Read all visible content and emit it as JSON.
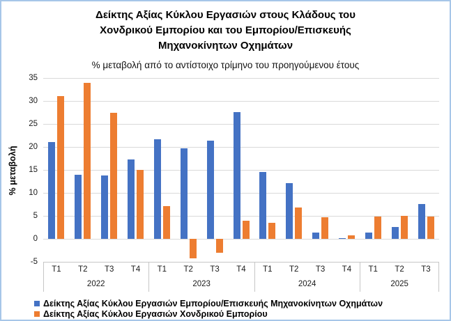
{
  "chart_data": {
    "type": "bar",
    "title": "Δείκτης Αξίας  Κύκλου Εργασιών στους Κλάδους του\nΧονδρικού Εμπορίου και του Εμπορίου/Επισκευής\nΜηχανοκίνητων Οχημάτων",
    "subtitle": "% μεταβολή από το αντίστοιχο τρίμηνο του προηγούμενου έτους",
    "ylabel": "% μεταβολή",
    "xlabel": "",
    "ylim": [
      -5,
      35
    ],
    "ytick_step": 5,
    "grid": true,
    "legend_position": "bottom-left",
    "groups": [
      {
        "year": "2022",
        "quarters": [
          "Τ1",
          "Τ2",
          "Τ3",
          "Τ4"
        ]
      },
      {
        "year": "2023",
        "quarters": [
          "Τ1",
          "Τ2",
          "Τ3",
          "Τ4"
        ]
      },
      {
        "year": "2024",
        "quarters": [
          "Τ1",
          "Τ2",
          "Τ3",
          "Τ4"
        ]
      },
      {
        "year": "2025",
        "quarters": [
          "Τ1",
          "Τ2",
          "Τ3"
        ]
      }
    ],
    "series": [
      {
        "name": "Δείκτης Αξίας Κύκλου Εργασιών Εμπορίου/Επισκευής Μηχανοκίνητων Οχημάτων",
        "color": "#4472C4",
        "values": [
          21.1,
          14.0,
          13.8,
          17.3,
          21.6,
          19.7,
          21.3,
          27.6,
          14.6,
          12.2,
          1.4,
          0.2,
          1.3,
          2.6,
          7.6
        ]
      },
      {
        "name": "Δείκτης Αξίας Κύκλου Εργασιών Χονδρικού Εμπορίου",
        "color": "#ED7D31",
        "values": [
          31.0,
          34.0,
          27.4,
          15.0,
          7.2,
          -4.3,
          -3.0,
          3.9,
          3.5,
          6.9,
          4.7,
          0.7,
          4.8,
          5.0,
          4.9
        ]
      }
    ]
  },
  "colors": {
    "frame_border": "#A7C6E8",
    "gridline": "#D9D9D9",
    "axis_band_line": "#C6C6C6",
    "axis_text": "#1a1a1a",
    "series_blue": "#4472C4",
    "series_orange": "#ED7D31"
  }
}
